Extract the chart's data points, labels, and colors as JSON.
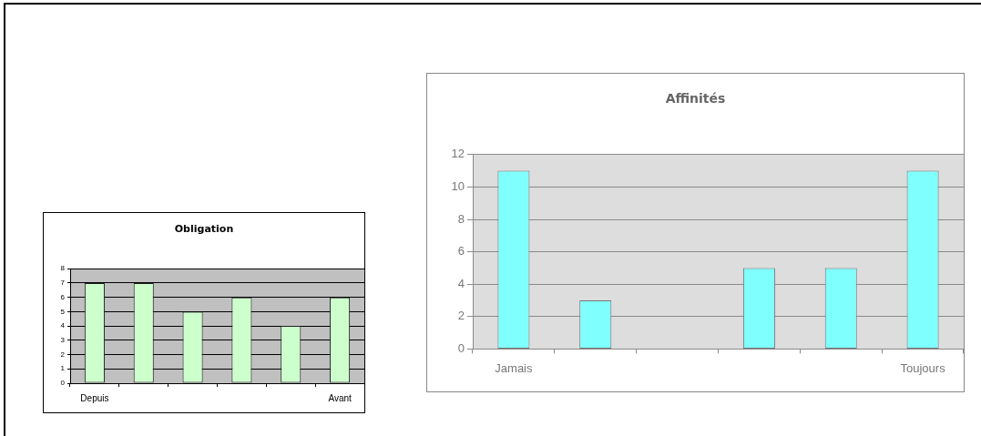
{
  "chart_data": [
    {
      "type": "bar",
      "title": "Obligation",
      "categories": [
        "Depuis",
        null,
        null,
        null,
        null,
        "Avant"
      ],
      "values": [
        7,
        7,
        5,
        6,
        4,
        6
      ],
      "color": "#ccffcc",
      "ylim": [
        0,
        8
      ],
      "yticks": [
        0,
        1,
        2,
        3,
        4,
        5,
        6,
        7,
        8
      ],
      "grid": "y"
    },
    {
      "type": "bar",
      "title": "Affinités",
      "categories": [
        "Jamais",
        null,
        null,
        null,
        null,
        "Toujours"
      ],
      "values": [
        11,
        3,
        0,
        5,
        5,
        11
      ],
      "color": "#80ffff",
      "ylim": [
        0,
        12
      ],
      "yticks": [
        0,
        2,
        4,
        6,
        8,
        10,
        12
      ],
      "grid": "y"
    }
  ]
}
